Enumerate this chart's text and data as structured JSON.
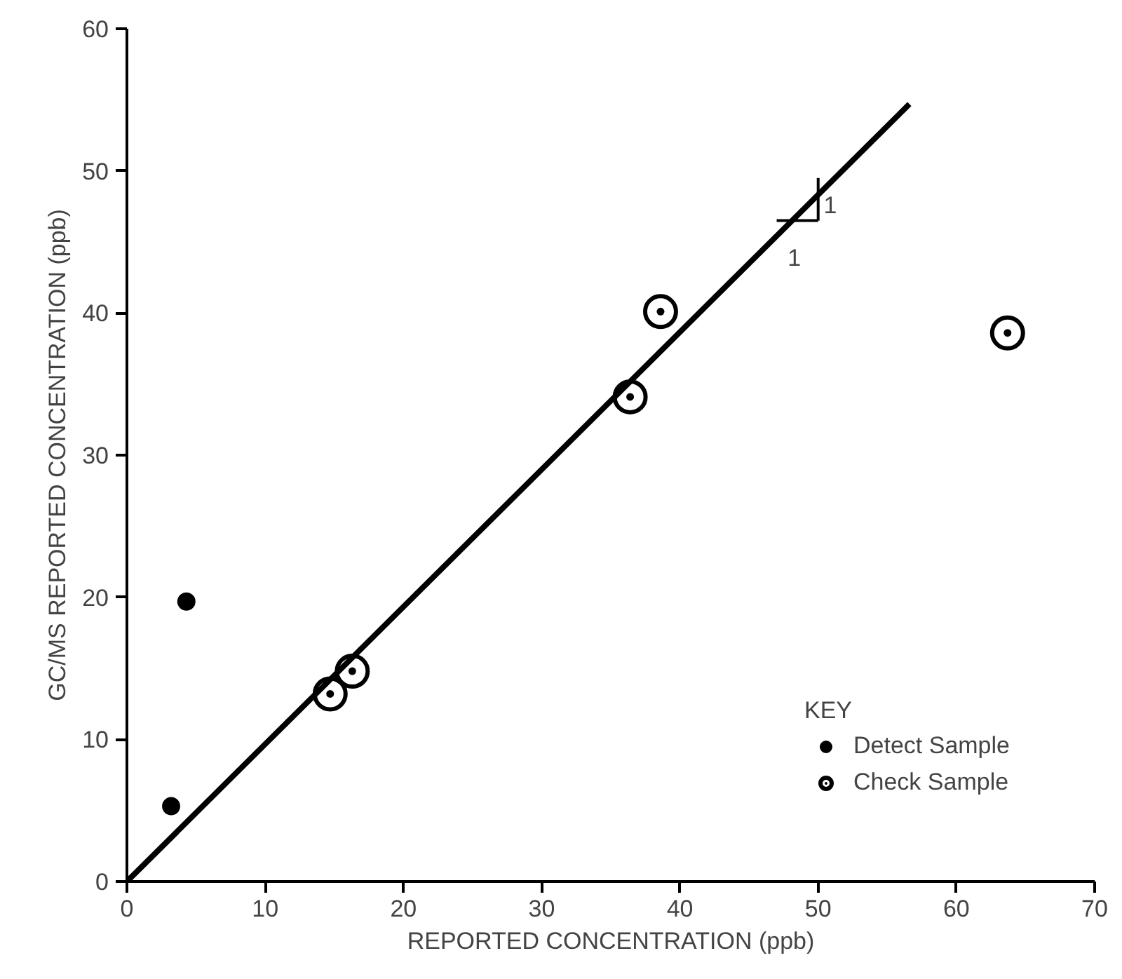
{
  "chart_data": {
    "type": "scatter",
    "xlabel": "REPORTED CONCENTRATION (ppb)",
    "ylabel": "GC/MS REPORTED CONCENTRATION (ppb)",
    "legend_title": "KEY",
    "series": [
      {
        "name": "Detect Sample",
        "color": "#000000",
        "marker": "circle",
        "x": [
          3.2,
          4.3
        ],
        "values": [
          5.3,
          19.7
        ]
      },
      {
        "name": "Check Sample",
        "color": "#000000",
        "marker": "circle_dot",
        "x": [
          14.7,
          16.3,
          36.4,
          38.6,
          63.7
        ],
        "values": [
          13.2,
          14.8,
          34.1,
          40.1,
          38.6
        ]
      },
      {
        "type": "line",
        "color": "#000000",
        "x": [
          0,
          56.6
        ],
        "values": [
          0,
          54.7
        ]
      }
    ],
    "annotations": [
      "1",
      "1"
    ],
    "xlim": [
      0,
      70
    ],
    "ylim": [
      0,
      60
    ],
    "xticks": [
      0,
      10,
      20,
      30,
      40,
      50,
      60,
      70
    ],
    "yticks": [
      0,
      10,
      20,
      30,
      40,
      50,
      60
    ],
    "grid": false,
    "legend": "bottom right"
  }
}
